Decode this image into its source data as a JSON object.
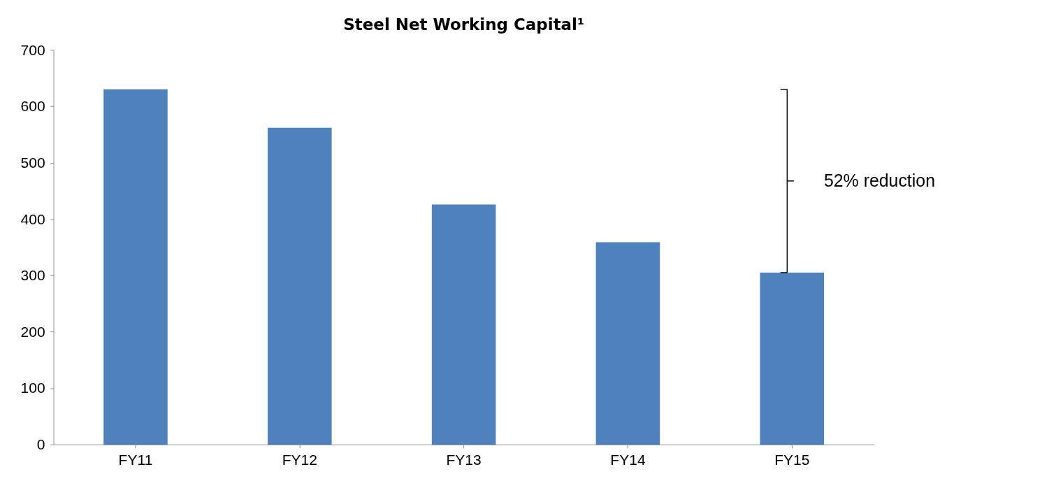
{
  "chart_data": {
    "type": "bar",
    "title": "Steel Net Working Capital¹",
    "categories": [
      "FY11",
      "FY12",
      "FY13",
      "FY14",
      "FY15"
    ],
    "values": [
      630,
      562,
      426,
      359,
      305
    ],
    "color": "#4f81bd",
    "ylim": [
      0,
      700
    ],
    "yticks": [
      0,
      100,
      200,
      300,
      400,
      500,
      600,
      700
    ],
    "grid": false,
    "annotations": [
      "52% reduction"
    ]
  }
}
